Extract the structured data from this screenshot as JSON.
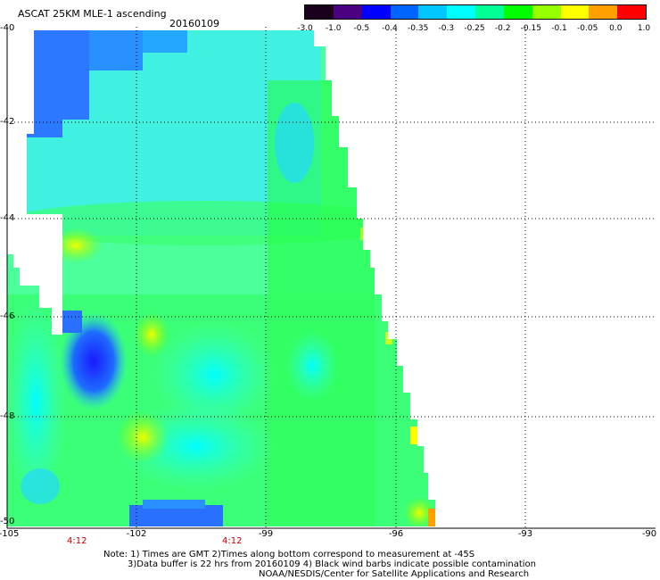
{
  "header": {
    "title": "ASCAT 25KM MLE-1 ascending",
    "date": "20160109"
  },
  "colorbar": {
    "labels": [
      "-3.0",
      "-1.0",
      "-0.5",
      "-0.4",
      "-0.35",
      "-0.3",
      "-0.25",
      "-0.2",
      "-0.15",
      "-0.1",
      "-0.05",
      "0.0",
      "1.0"
    ],
    "colors": [
      "#1a001a",
      "#4b0082",
      "#0000ff",
      "#0064ff",
      "#00c8ff",
      "#00ffff",
      "#00ff96",
      "#00ff00",
      "#96ff00",
      "#ffff00",
      "#ffa000",
      "#ff0000"
    ]
  },
  "axes": {
    "lon_labels": [
      "-105",
      "-102",
      "-99",
      "-96",
      "-93",
      "-90"
    ],
    "lat_labels": [
      "-40",
      "-42",
      "-44",
      "-46",
      "-48",
      "-50"
    ]
  },
  "time_labels": [
    "4:12",
    "4:12"
  ],
  "notes": [
    "Note: 1) Times are GMT 2)Times along bottom correspond to measurement at -45S",
    "3)Data buffer is 22 hrs from 20160109 4) Black wind barbs indicate possible contamination",
    "NOAA/NESDIS/Center for Satellite Applications and Research"
  ]
}
